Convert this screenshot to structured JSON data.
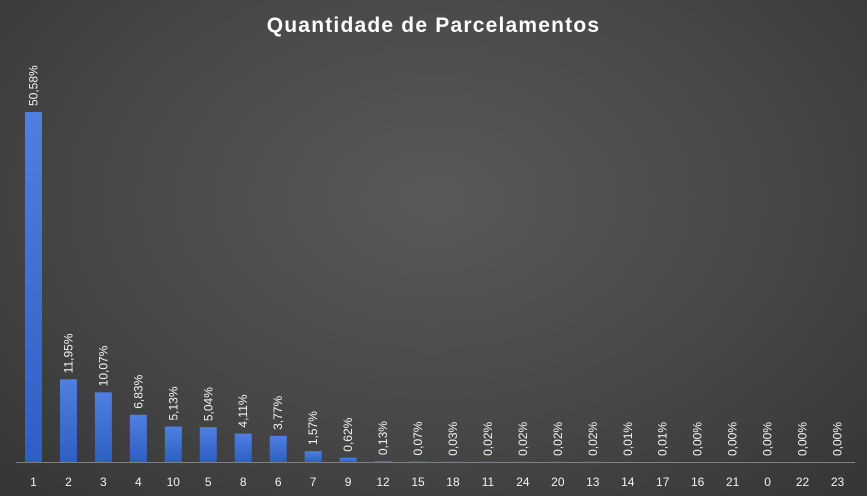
{
  "chart_data": {
    "type": "bar",
    "title": "Quantidade de Parcelamentos",
    "xlabel": "",
    "ylabel": "",
    "categories": [
      "1",
      "2",
      "3",
      "4",
      "10",
      "5",
      "8",
      "6",
      "7",
      "9",
      "12",
      "15",
      "18",
      "11",
      "24",
      "20",
      "13",
      "14",
      "17",
      "16",
      "21",
      "0",
      "22",
      "23"
    ],
    "values": [
      50.58,
      11.95,
      10.07,
      6.83,
      5.13,
      5.04,
      4.11,
      3.77,
      1.57,
      0.62,
      0.13,
      0.07,
      0.03,
      0.02,
      0.02,
      0.02,
      0.02,
      0.01,
      0.01,
      0.0,
      0.0,
      0.0,
      0.0,
      0.0
    ],
    "data_labels": [
      "50,58%",
      "11,95%",
      "10,07%",
      "6,83%",
      "5,13%",
      "5,04%",
      "4,11%",
      "3,77%",
      "1,57%",
      "0,62%",
      "0,13%",
      "0,07%",
      "0,03%",
      "0,02%",
      "0,02%",
      "0,02%",
      "0,02%",
      "0,01%",
      "0,01%",
      "0,00%",
      "0,00%",
      "0,00%",
      "0,00%",
      "0,00%"
    ],
    "ylim": [
      0,
      50.58
    ],
    "grid": false,
    "legend": "none",
    "colors": {
      "bar_top": "#4f7fe0",
      "bar_bottom": "#2f5fc2",
      "baseline": "#7f7f7f"
    }
  }
}
